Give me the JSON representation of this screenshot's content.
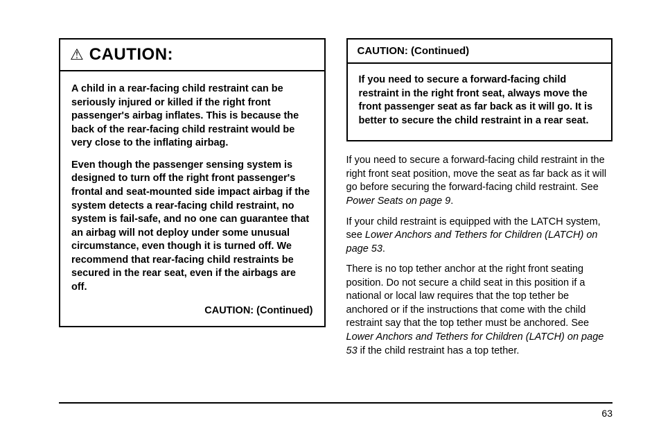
{
  "left": {
    "caution": {
      "icon": "⚠",
      "title": "CAUTION:",
      "p1": "A child in a rear-facing child restraint can be seriously injured or killed if the right front passenger's airbag inflates. This is because the back of the rear-facing child restraint would be very close to the inflating airbag.",
      "p2": "Even though the passenger sensing system is designed to turn off the right front passenger's frontal and seat-mounted side impact airbag if the system detects a rear-facing child restraint, no system is fail-safe, and no one can guarantee that an airbag will not deploy under some unusual circumstance, even though it is turned off. We recommend that rear-facing child restraints be secured in the rear seat, even if the airbags are off.",
      "continued": "CAUTION:   (Continued)"
    }
  },
  "right": {
    "continued_header": "CAUTION:   (Continued)",
    "continued_body": "If you need to secure a forward-facing child restraint in the right front seat, always move the front passenger seat as far back as it will go. It is better to secure the child restraint in a rear seat.",
    "p1a": "If you need to secure a forward-facing child restraint in the right front seat position, move the seat as far back as it will go before securing the forward-facing child restraint. See ",
    "p1ref": "Power Seats on page 9",
    "p1b": ".",
    "p2a": "If your child restraint is equipped with the LATCH system, see ",
    "p2ref": "Lower Anchors and Tethers for Children (LATCH) on page 53",
    "p2b": ".",
    "p3a": "There is no top tether anchor at the right front seating position. Do not secure a child seat in this position if a national or local law requires that the top tether be anchored or if the instructions that come with the child restraint say that the top tether must be anchored. See ",
    "p3ref": "Lower Anchors and Tethers for Children (LATCH) on page 53",
    "p3b": " if the child restraint has a top tether."
  },
  "page_number": "63"
}
